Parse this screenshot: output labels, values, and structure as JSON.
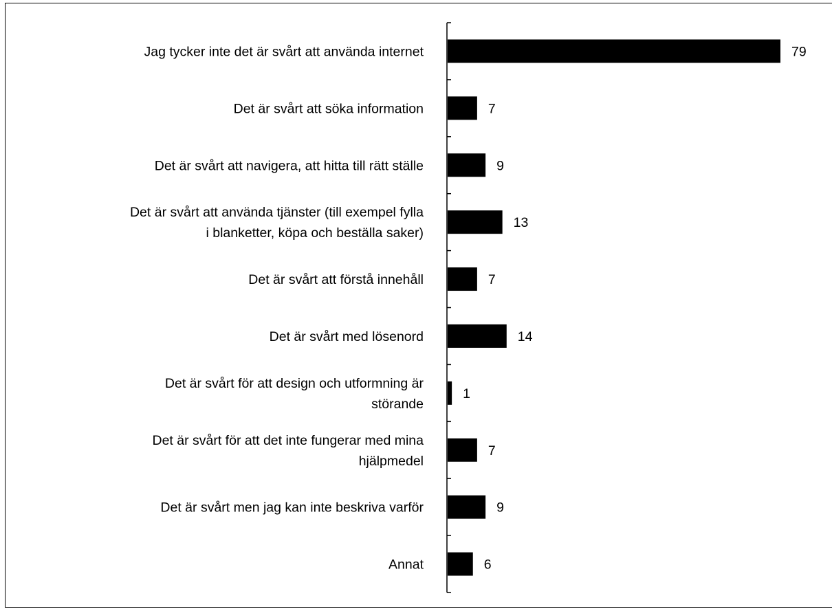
{
  "chart_data": {
    "type": "bar",
    "orientation": "horizontal",
    "categories": [
      [
        "Jag tycker inte det är svårt att använda internet"
      ],
      [
        "Det är svårt att söka information"
      ],
      [
        "Det är svårt att navigera, att hitta till rätt ställe"
      ],
      [
        "Det är svårt att använda tjänster (till exempel fylla",
        "i blanketter, köpa och beställa saker)"
      ],
      [
        "Det är svårt att förstå innehåll"
      ],
      [
        "Det är svårt med lösenord"
      ],
      [
        "Det är svårt för att design och utformning är",
        "störande"
      ],
      [
        "Det är svårt för att det inte fungerar med mina",
        "hjälpmedel"
      ],
      [
        "Det är svårt men jag kan inte beskriva varför"
      ],
      [
        "Annat"
      ]
    ],
    "values": [
      79,
      7,
      9,
      13,
      7,
      14,
      1,
      7,
      9,
      6
    ],
    "data_labels": [
      "79",
      "7",
      "9",
      "13",
      "7",
      "14",
      "1",
      "7",
      "9",
      "6"
    ],
    "bar_color": "#000000",
    "xlim": [
      0,
      80
    ],
    "grid": false,
    "legend": "none"
  }
}
